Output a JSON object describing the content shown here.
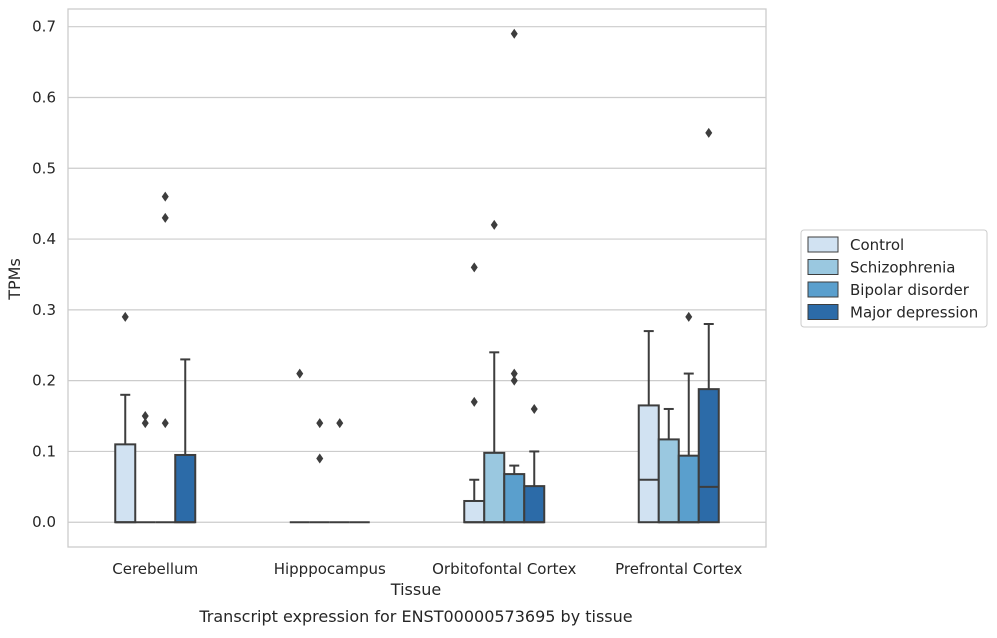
{
  "chart_data": {
    "type": "box",
    "title": "",
    "caption": "Transcript expression for ENST00000573695 by tissue",
    "xlabel": "Tissue",
    "ylabel": "TPMs",
    "ylim": [
      -0.035,
      0.725
    ],
    "yticks": [
      0.0,
      0.1,
      0.2,
      0.3,
      0.4,
      0.5,
      0.6,
      0.7
    ],
    "ytick_labels": [
      "0.0",
      "0.1",
      "0.2",
      "0.3",
      "0.4",
      "0.5",
      "0.6",
      "0.7"
    ],
    "grid": "horizontal",
    "legend_position": "right",
    "categories": [
      "Cerebellum",
      "Hipppocampus",
      "Orbitofontal Cortex",
      "Prefrontal Cortex"
    ],
    "series": [
      {
        "name": "Control",
        "color": "#d1e2f2",
        "boxes": [
          {
            "q1": 0.0,
            "median": 0.0,
            "q3": 0.11,
            "whisker_low": 0.0,
            "whisker_high": 0.18,
            "outliers": [
              0.29
            ]
          },
          {
            "q1": 0.0,
            "median": 0.0,
            "q3": 0.0,
            "whisker_low": 0.0,
            "whisker_high": 0.0,
            "outliers": [
              0.21
            ]
          },
          {
            "q1": 0.0,
            "median": 0.0,
            "q3": 0.03,
            "whisker_low": 0.0,
            "whisker_high": 0.06,
            "outliers": [
              0.17,
              0.36
            ]
          },
          {
            "q1": 0.0,
            "median": 0.06,
            "q3": 0.165,
            "whisker_low": 0.0,
            "whisker_high": 0.27,
            "outliers": []
          }
        ]
      },
      {
        "name": "Schizophrenia",
        "color": "#9ac8e0",
        "boxes": [
          {
            "q1": 0.0,
            "median": 0.0,
            "q3": 0.0,
            "whisker_low": 0.0,
            "whisker_high": 0.0,
            "outliers": [
              0.14,
              0.15
            ]
          },
          {
            "q1": 0.0,
            "median": 0.0,
            "q3": 0.0,
            "whisker_low": 0.0,
            "whisker_high": 0.0,
            "outliers": [
              0.09,
              0.14
            ]
          },
          {
            "q1": 0.0,
            "median": 0.0,
            "q3": 0.098,
            "whisker_low": 0.0,
            "whisker_high": 0.24,
            "outliers": [
              0.42
            ]
          },
          {
            "q1": 0.0,
            "median": 0.0,
            "q3": 0.117,
            "whisker_low": 0.0,
            "whisker_high": 0.16,
            "outliers": []
          }
        ]
      },
      {
        "name": "Bipolar disorder",
        "color": "#5a9fcd",
        "boxes": [
          {
            "q1": 0.0,
            "median": 0.0,
            "q3": 0.0,
            "whisker_low": 0.0,
            "whisker_high": 0.0,
            "outliers": [
              0.14,
              0.43,
              0.46
            ]
          },
          {
            "q1": 0.0,
            "median": 0.0,
            "q3": 0.0,
            "whisker_low": 0.0,
            "whisker_high": 0.0,
            "outliers": [
              0.14
            ]
          },
          {
            "q1": 0.0,
            "median": 0.0,
            "q3": 0.068,
            "whisker_low": 0.0,
            "whisker_high": 0.08,
            "outliers": [
              0.2,
              0.21,
              0.69
            ]
          },
          {
            "q1": 0.0,
            "median": 0.0,
            "q3": 0.094,
            "whisker_low": 0.0,
            "whisker_high": 0.21,
            "outliers": [
              0.29
            ]
          }
        ]
      },
      {
        "name": "Major depression",
        "color": "#2c6ba8",
        "boxes": [
          {
            "q1": 0.0,
            "median": 0.0,
            "q3": 0.095,
            "whisker_low": 0.0,
            "whisker_high": 0.23,
            "outliers": []
          },
          {
            "q1": 0.0,
            "median": 0.0,
            "q3": 0.0,
            "whisker_low": 0.0,
            "whisker_high": 0.0,
            "outliers": []
          },
          {
            "q1": 0.0,
            "median": 0.0,
            "q3": 0.051,
            "whisker_low": 0.0,
            "whisker_high": 0.1,
            "outliers": [
              0.16
            ]
          },
          {
            "q1": 0.0,
            "median": 0.05,
            "q3": 0.188,
            "whisker_low": 0.0,
            "whisker_high": 0.28,
            "outliers": [
              0.55
            ]
          }
        ]
      }
    ],
    "colors": {
      "grid": "#cccccc",
      "frame": "#cccccc",
      "box_edge": "#3d3d3d",
      "text": "#262626"
    }
  }
}
